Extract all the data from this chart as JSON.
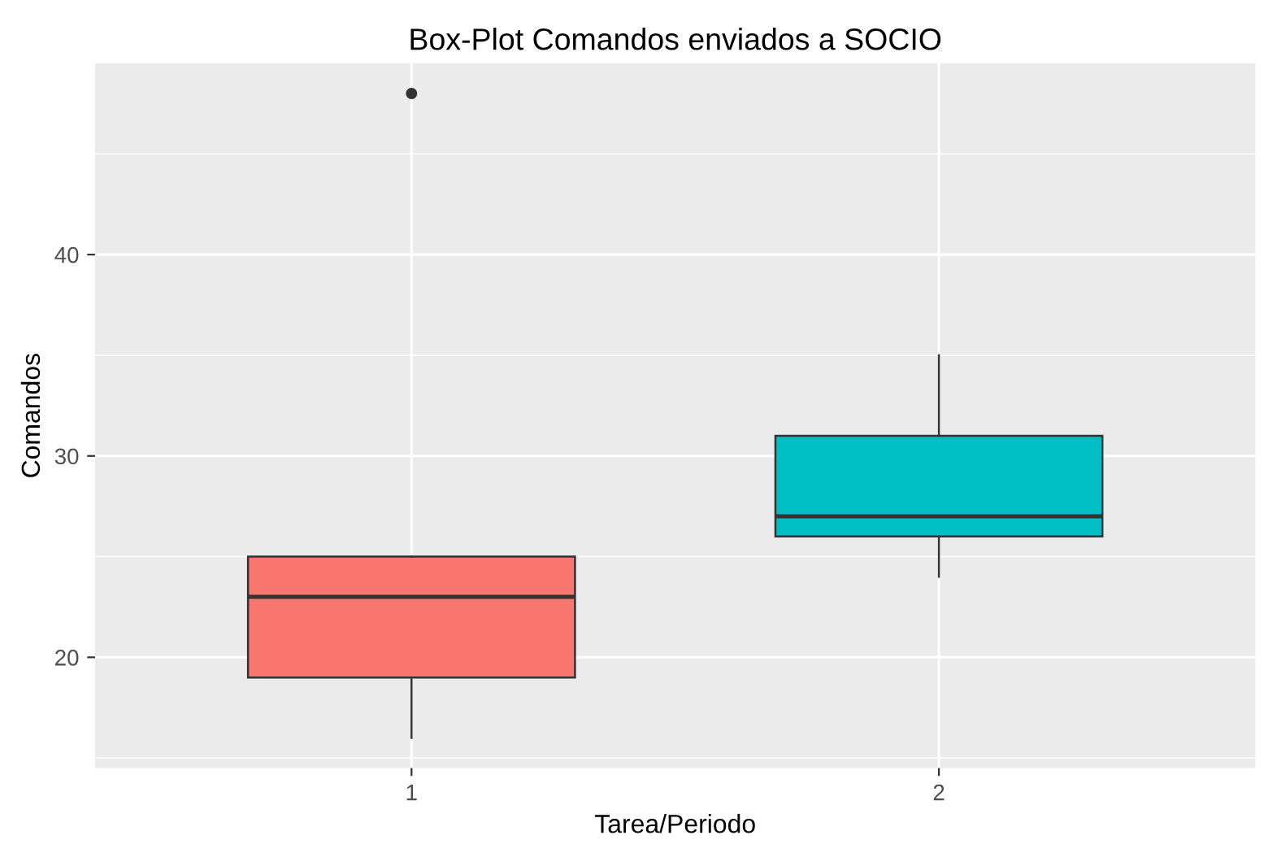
{
  "chart_data": {
    "type": "box",
    "title": "Box-Plot Comandos enviados a SOCIO",
    "xlabel": "Tarea/Periodo",
    "ylabel": "Comandos",
    "categories": [
      "1",
      "2"
    ],
    "colors": [
      "#f8766d",
      "#00bfc4"
    ],
    "boxes": [
      {
        "low": 16,
        "q1": 19,
        "median": 23,
        "q3": 25,
        "high": 25,
        "outliers": [
          48
        ]
      },
      {
        "low": 24,
        "q1": 26,
        "median": 27,
        "q3": 31,
        "high": 35
      }
    ],
    "ylim": [
      14.5,
      49.5
    ],
    "yticks": [
      {
        "value": 15,
        "label": null
      },
      20,
      {
        "value": 25,
        "label": null
      },
      30,
      {
        "value": 35,
        "label": null
      },
      40,
      {
        "value": 45,
        "label": null
      }
    ],
    "grid": true
  }
}
